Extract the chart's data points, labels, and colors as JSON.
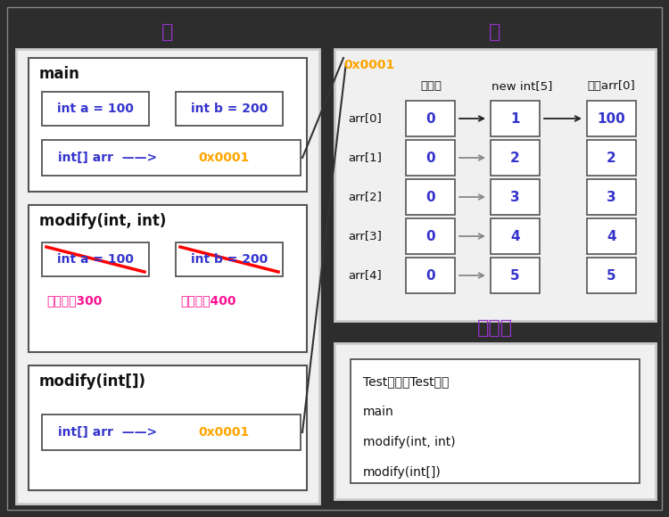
{
  "bg_color": "#2d2d2d",
  "panel_bg": "#f0f0f0",
  "inner_bg": "#ffffff",
  "border_color": "#333333",
  "title_stack": "栈",
  "title_heap": "堆",
  "title_method": "方法区",
  "title_color": "#9932CC",
  "blue_text": "#3333cc",
  "orange_text": "#FFA500",
  "pink_text": "#FF1493",
  "black_text": "#111111",
  "gray_text": "#666666",
  "white_text": "#f0f0f0",
  "method_lines": [
    "Test标记（Test类）",
    "main",
    "modify(int, int)",
    "modify(int[])"
  ],
  "arr_rows": [
    "arr[0]",
    "arr[1]",
    "arr[2]",
    "arr[3]",
    "arr[4]"
  ],
  "col_init": [
    0,
    0,
    0,
    0,
    0
  ],
  "col_new": [
    1,
    2,
    3,
    4,
    5
  ],
  "col_mod": [
    100,
    2,
    3,
    4,
    5
  ]
}
